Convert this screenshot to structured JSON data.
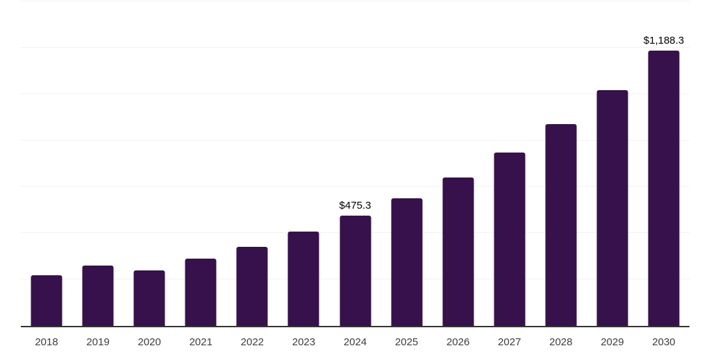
{
  "chart_data": {
    "type": "bar",
    "title": "",
    "xlabel": "",
    "ylabel": "",
    "categories": [
      "2018",
      "2019",
      "2020",
      "2021",
      "2022",
      "2023",
      "2024",
      "2025",
      "2026",
      "2027",
      "2028",
      "2029",
      "2030"
    ],
    "values": [
      218,
      261,
      238,
      291,
      342,
      408,
      475.3,
      551,
      641,
      747,
      870,
      1017,
      1188.3
    ],
    "data_labels": [
      "",
      "",
      "",
      "",
      "",
      "",
      "$475.3",
      "",
      "",
      "",
      "",
      "",
      "$1,188.3"
    ],
    "ylim": [
      0,
      1400
    ],
    "gridline_step": 200,
    "grid": true,
    "legend": false,
    "y_axis_labels_visible": false,
    "colors": {
      "bar": "#36114B",
      "gridline": "#f2f2f2",
      "axis_line": "#333333",
      "tick_label": "#3d3d3d",
      "data_label": "#000000",
      "background": "#ffffff"
    }
  }
}
